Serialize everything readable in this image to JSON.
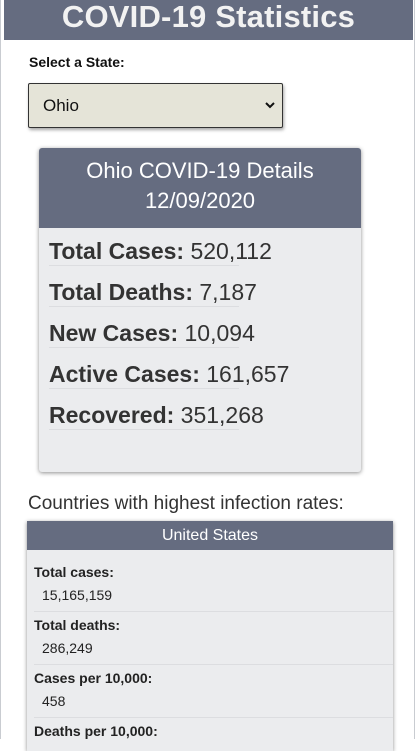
{
  "header": {
    "title": "COVID-19 Statistics"
  },
  "state_selector": {
    "label": "Select a State:",
    "selected": "Ohio"
  },
  "details": {
    "title": "Ohio COVID-19 Details",
    "date": "12/09/2020",
    "rows": [
      {
        "label": "Total Cases:",
        "value": "520,112"
      },
      {
        "label": "Total Deaths:",
        "value": "7,187"
      },
      {
        "label": "New Cases:",
        "value": "10,094"
      },
      {
        "label": "Active Cases:",
        "value": "161,657"
      },
      {
        "label": "Recovered:",
        "value": "351,268"
      }
    ]
  },
  "countries": {
    "heading": "Countries with highest infection rates:",
    "card": {
      "country": "United States",
      "stats": [
        {
          "label": "Total cases:",
          "value": "15,165,159"
        },
        {
          "label": "Total deaths:",
          "value": "286,249"
        },
        {
          "label": "Cases per 10,000:",
          "value": "458"
        },
        {
          "label": "Deaths per 10,000:",
          "value": ""
        }
      ]
    }
  }
}
